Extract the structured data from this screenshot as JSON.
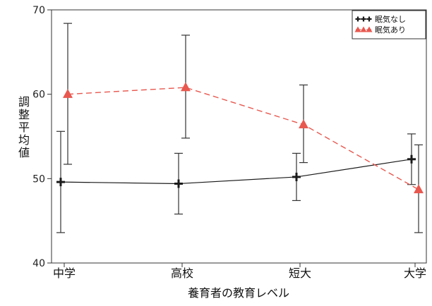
{
  "chart_data": {
    "type": "line",
    "categories": [
      "中学",
      "高校",
      "短大",
      "大学"
    ],
    "xlabel": "養育者の教育レベル",
    "ylabel": "調整平均値",
    "ylim": [
      40,
      70
    ],
    "yticks": [
      40,
      50,
      60,
      70
    ],
    "legend_position": "top-right",
    "series": [
      {
        "name": "眠気なし",
        "color": "#1a1a1a",
        "line_style": "solid",
        "marker": "plus",
        "values": [
          49.6,
          49.4,
          50.2,
          52.3
        ],
        "error_low": [
          43.6,
          45.8,
          47.4,
          49.3
        ],
        "error_high": [
          55.6,
          53.0,
          53.0,
          55.3
        ]
      },
      {
        "name": "眠気あり",
        "color": "#e8584f",
        "line_style": "dashed",
        "marker": "triangle",
        "values": [
          60.0,
          60.8,
          56.4,
          48.7
        ],
        "error_low": [
          51.7,
          54.8,
          51.9,
          43.6
        ],
        "error_high": [
          68.4,
          67.0,
          61.1,
          54.0
        ]
      }
    ]
  }
}
